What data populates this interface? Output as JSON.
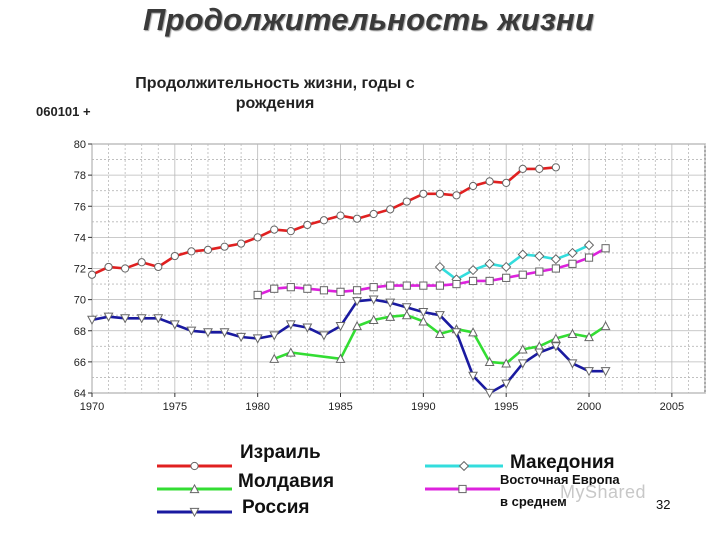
{
  "slide": {
    "title": "Продолжительность жизни",
    "code_label": "060101 +",
    "page_number": "32",
    "watermark": "MyShared"
  },
  "chart_data": {
    "type": "line",
    "title": "Продолжительность жизни, годы с рождения",
    "xlabel": "",
    "ylabel": "",
    "xlim": [
      1970,
      2007
    ],
    "ylim": [
      64,
      80
    ],
    "x_ticks": [
      "1970",
      "1975",
      "1980",
      "1985",
      "1990",
      "1995",
      "2000",
      "2005"
    ],
    "y_ticks": [
      "64",
      "66",
      "68",
      "70",
      "72",
      "74",
      "76",
      "78",
      "80"
    ],
    "grid": true,
    "legend": "bottom",
    "series": [
      {
        "name": "Израиль",
        "color": "#e02020",
        "marker": "circle",
        "points": [
          [
            1970,
            71.6
          ],
          [
            1971,
            72.1
          ],
          [
            1972,
            72.0
          ],
          [
            1973,
            72.4
          ],
          [
            1974,
            72.1
          ],
          [
            1975,
            72.8
          ],
          [
            1976,
            73.1
          ],
          [
            1977,
            73.2
          ],
          [
            1978,
            73.4
          ],
          [
            1979,
            73.6
          ],
          [
            1980,
            74.0
          ],
          [
            1981,
            74.5
          ],
          [
            1982,
            74.4
          ],
          [
            1983,
            74.8
          ],
          [
            1984,
            75.1
          ],
          [
            1985,
            75.4
          ],
          [
            1986,
            75.2
          ],
          [
            1987,
            75.5
          ],
          [
            1988,
            75.8
          ],
          [
            1989,
            76.3
          ],
          [
            1990,
            76.8
          ],
          [
            1991,
            76.8
          ],
          [
            1992,
            76.7
          ],
          [
            1993,
            77.3
          ],
          [
            1994,
            77.6
          ],
          [
            1995,
            77.5
          ],
          [
            1996,
            78.4
          ],
          [
            1997,
            78.4
          ],
          [
            1998,
            78.5
          ]
        ]
      },
      {
        "name": "Молдавия",
        "color": "#33dd33",
        "marker": "triangle-up",
        "points": [
          [
            1981,
            66.2
          ],
          [
            1982,
            66.6
          ],
          [
            1985,
            66.2
          ],
          [
            1986,
            68.3
          ],
          [
            1987,
            68.7
          ],
          [
            1988,
            68.9
          ],
          [
            1989,
            69.0
          ],
          [
            1990,
            68.6
          ],
          [
            1991,
            67.8
          ],
          [
            1992,
            68.1
          ],
          [
            1993,
            67.9
          ],
          [
            1994,
            66.0
          ],
          [
            1995,
            65.9
          ],
          [
            1996,
            66.8
          ],
          [
            1997,
            67.0
          ],
          [
            1998,
            67.5
          ],
          [
            1999,
            67.8
          ],
          [
            2000,
            67.6
          ],
          [
            2001,
            68.3
          ]
        ]
      },
      {
        "name": "Россия",
        "color": "#1a1aa0",
        "marker": "triangle-down",
        "points": [
          [
            1970,
            68.7
          ],
          [
            1971,
            68.9
          ],
          [
            1972,
            68.8
          ],
          [
            1973,
            68.8
          ],
          [
            1974,
            68.8
          ],
          [
            1975,
            68.4
          ],
          [
            1976,
            68.0
          ],
          [
            1977,
            67.9
          ],
          [
            1978,
            67.9
          ],
          [
            1979,
            67.6
          ],
          [
            1980,
            67.5
          ],
          [
            1981,
            67.7
          ],
          [
            1982,
            68.4
          ],
          [
            1983,
            68.2
          ],
          [
            1984,
            67.7
          ],
          [
            1985,
            68.3
          ],
          [
            1986,
            69.9
          ],
          [
            1987,
            70.0
          ],
          [
            1988,
            69.8
          ],
          [
            1989,
            69.5
          ],
          [
            1990,
            69.2
          ],
          [
            1991,
            69.0
          ],
          [
            1992,
            67.9
          ],
          [
            1993,
            65.1
          ],
          [
            1994,
            64.0
          ],
          [
            1995,
            64.6
          ],
          [
            1996,
            65.9
          ],
          [
            1997,
            66.6
          ],
          [
            1998,
            67.0
          ],
          [
            1999,
            65.9
          ],
          [
            2000,
            65.4
          ],
          [
            2001,
            65.4
          ]
        ]
      },
      {
        "name": "Македония",
        "color": "#33dddd",
        "marker": "diamond",
        "points": [
          [
            1991,
            72.1
          ],
          [
            1992,
            71.3
          ],
          [
            1993,
            71.9
          ],
          [
            1994,
            72.3
          ],
          [
            1995,
            72.1
          ],
          [
            1996,
            72.9
          ],
          [
            1997,
            72.8
          ],
          [
            1998,
            72.6
          ],
          [
            1999,
            73.0
          ],
          [
            2000,
            73.5
          ]
        ]
      },
      {
        "name": "Восточная Европа в среднем",
        "label_lines": [
          "Восточная Европа",
          "в среднем"
        ],
        "color": "#dd22dd",
        "marker": "square",
        "points": [
          [
            1980,
            70.3
          ],
          [
            1981,
            70.7
          ],
          [
            1982,
            70.8
          ],
          [
            1983,
            70.7
          ],
          [
            1984,
            70.6
          ],
          [
            1985,
            70.5
          ],
          [
            1986,
            70.6
          ],
          [
            1987,
            70.8
          ],
          [
            1988,
            70.9
          ],
          [
            1989,
            70.9
          ],
          [
            1990,
            70.9
          ],
          [
            1991,
            70.9
          ],
          [
            1992,
            71.0
          ],
          [
            1993,
            71.2
          ],
          [
            1994,
            71.2
          ],
          [
            1995,
            71.4
          ],
          [
            1996,
            71.6
          ],
          [
            1997,
            71.8
          ],
          [
            1998,
            72.0
          ],
          [
            1999,
            72.3
          ],
          [
            2000,
            72.7
          ],
          [
            2001,
            73.3
          ]
        ]
      }
    ]
  }
}
